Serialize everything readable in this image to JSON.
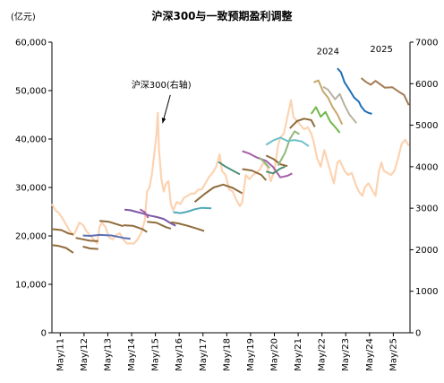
{
  "chart_data": {
    "type": "line",
    "title": "沪深300与一致预期盈利调整",
    "unit_label": "(亿元)",
    "ylim_left": [
      0,
      60000
    ],
    "ylim_right": [
      0,
      7000
    ],
    "yticks_left": [
      "0",
      "10,000",
      "20,000",
      "30,000",
      "40,000",
      "50,000",
      "60,000"
    ],
    "yticks_right": [
      "0",
      "1000",
      "2000",
      "3000",
      "4000",
      "5000",
      "6000",
      "7000"
    ],
    "xlim": [
      2011.0,
      2026.05
    ],
    "xticks": [
      "May/11",
      "May/12",
      "May/13",
      "May/14",
      "May/15",
      "May/16",
      "May/17",
      "May/18",
      "May/19",
      "May/20",
      "May/21",
      "May/22",
      "May/23",
      "May/24",
      "May/25"
    ],
    "annotations": [
      {
        "text": "沪深300(右轴)",
        "x": 2015.6,
        "y": 5900,
        "axis": "right",
        "arrow_to": [
          2015.65,
          5050
        ]
      },
      {
        "text": "2024",
        "x": 2022.6,
        "y": 57500,
        "axis": "left"
      },
      {
        "text": "2025",
        "x": 2024.85,
        "y": 58000,
        "axis": "left"
      }
    ],
    "index_series": {
      "name": "沪深300(右轴)",
      "axis": "right",
      "color": "#fcd3b2",
      "points": [
        [
          2011.0,
          3100
        ],
        [
          2011.15,
          2950
        ],
        [
          2011.3,
          2880
        ],
        [
          2011.45,
          2750
        ],
        [
          2011.6,
          2600
        ],
        [
          2011.75,
          2450
        ],
        [
          2011.9,
          2350
        ],
        [
          2012.0,
          2450
        ],
        [
          2012.15,
          2650
        ],
        [
          2012.3,
          2600
        ],
        [
          2012.45,
          2450
        ],
        [
          2012.6,
          2350
        ],
        [
          2012.75,
          2250
        ],
        [
          2012.9,
          2150
        ],
        [
          2013.0,
          2550
        ],
        [
          2013.1,
          2650
        ],
        [
          2013.25,
          2550
        ],
        [
          2013.4,
          2300
        ],
        [
          2013.55,
          2250
        ],
        [
          2013.7,
          2350
        ],
        [
          2013.85,
          2400
        ],
        [
          2014.0,
          2250
        ],
        [
          2014.15,
          2150
        ],
        [
          2014.3,
          2150
        ],
        [
          2014.45,
          2150
        ],
        [
          2014.6,
          2250
        ],
        [
          2014.75,
          2400
        ],
        [
          2014.9,
          2700
        ],
        [
          2015.0,
          3400
        ],
        [
          2015.1,
          3500
        ],
        [
          2015.2,
          3800
        ],
        [
          2015.3,
          4300
        ],
        [
          2015.4,
          4800
        ],
        [
          2015.45,
          5300
        ],
        [
          2015.5,
          4400
        ],
        [
          2015.6,
          3700
        ],
        [
          2015.7,
          3400
        ],
        [
          2015.8,
          3600
        ],
        [
          2015.9,
          3650
        ],
        [
          2016.0,
          3100
        ],
        [
          2016.1,
          2950
        ],
        [
          2016.25,
          3150
        ],
        [
          2016.4,
          3100
        ],
        [
          2016.55,
          3250
        ],
        [
          2016.7,
          3300
        ],
        [
          2016.85,
          3350
        ],
        [
          2017.0,
          3350
        ],
        [
          2017.15,
          3450
        ],
        [
          2017.3,
          3450
        ],
        [
          2017.45,
          3600
        ],
        [
          2017.6,
          3750
        ],
        [
          2017.75,
          3850
        ],
        [
          2017.9,
          4000
        ],
        [
          2018.05,
          4300
        ],
        [
          2018.15,
          3900
        ],
        [
          2018.3,
          3800
        ],
        [
          2018.45,
          3450
        ],
        [
          2018.6,
          3400
        ],
        [
          2018.75,
          3200
        ],
        [
          2018.9,
          3050
        ],
        [
          2019.0,
          3150
        ],
        [
          2019.15,
          3800
        ],
        [
          2019.3,
          3700
        ],
        [
          2019.45,
          3800
        ],
        [
          2019.6,
          3850
        ],
        [
          2019.75,
          3950
        ],
        [
          2019.9,
          4100
        ],
        [
          2020.05,
          4000
        ],
        [
          2020.2,
          3650
        ],
        [
          2020.35,
          3900
        ],
        [
          2020.5,
          4500
        ],
        [
          2020.6,
          4700
        ],
        [
          2020.75,
          4800
        ],
        [
          2020.9,
          5200
        ],
        [
          2021.05,
          5600
        ],
        [
          2021.15,
          5200
        ],
        [
          2021.3,
          5100
        ],
        [
          2021.45,
          5000
        ],
        [
          2021.6,
          4900
        ],
        [
          2021.75,
          4950
        ],
        [
          2021.9,
          4800
        ],
        [
          2022.0,
          4600
        ],
        [
          2022.15,
          4200
        ],
        [
          2022.3,
          4000
        ],
        [
          2022.45,
          4400
        ],
        [
          2022.6,
          4100
        ],
        [
          2022.75,
          3800
        ],
        [
          2022.85,
          3600
        ],
        [
          2023.0,
          4100
        ],
        [
          2023.1,
          4150
        ],
        [
          2023.3,
          3900
        ],
        [
          2023.45,
          3800
        ],
        [
          2023.6,
          3850
        ],
        [
          2023.75,
          3600
        ],
        [
          2023.9,
          3400
        ],
        [
          2024.05,
          3300
        ],
        [
          2024.15,
          3500
        ],
        [
          2024.3,
          3600
        ],
        [
          2024.45,
          3450
        ],
        [
          2024.6,
          3300
        ],
        [
          2024.75,
          3900
        ],
        [
          2024.85,
          4100
        ],
        [
          2024.95,
          3900
        ],
        [
          2025.1,
          3850
        ],
        [
          2025.25,
          3800
        ],
        [
          2025.4,
          3900
        ],
        [
          2025.55,
          4200
        ],
        [
          2025.7,
          4550
        ],
        [
          2025.85,
          4650
        ],
        [
          2026.0,
          4500
        ]
      ]
    },
    "series": [
      {
        "name": "",
        "axis": "left",
        "color": "#8f6c3c",
        "points": [
          [
            2011.0,
            21400
          ],
          [
            2011.4,
            21200
          ],
          [
            2011.7,
            20500
          ],
          [
            2011.9,
            20300
          ]
        ]
      },
      {
        "name": "",
        "axis": "left",
        "color": "#8f6c3c",
        "points": [
          [
            2011.0,
            18100
          ],
          [
            2011.3,
            17900
          ],
          [
            2011.6,
            17500
          ],
          [
            2011.9,
            16500
          ]
        ]
      },
      {
        "name": "",
        "axis": "left",
        "color": "#8f6c3c",
        "points": [
          [
            2012.0,
            19600
          ],
          [
            2012.3,
            19300
          ],
          [
            2012.6,
            19000
          ],
          [
            2012.95,
            18900
          ]
        ]
      },
      {
        "name": "",
        "axis": "left",
        "color": "#8f6c3c",
        "points": [
          [
            2012.3,
            17800
          ],
          [
            2012.6,
            17400
          ],
          [
            2012.95,
            17300
          ]
        ]
      },
      {
        "name": "",
        "axis": "left",
        "color": "#5b6fb5",
        "points": [
          [
            2012.3,
            20100
          ],
          [
            2012.6,
            20000
          ],
          [
            2013.0,
            20200
          ],
          [
            2013.5,
            20100
          ],
          [
            2014.0,
            19600
          ],
          [
            2014.3,
            19400
          ]
        ]
      },
      {
        "name": "",
        "axis": "left",
        "color": "#8f6c3c",
        "points": [
          [
            2013.0,
            23100
          ],
          [
            2013.4,
            22900
          ],
          [
            2013.8,
            22300
          ],
          [
            2014.0,
            22000
          ]
        ]
      },
      {
        "name": "",
        "axis": "left",
        "color": "#8f6c3c",
        "points": [
          [
            2014.0,
            22200
          ],
          [
            2014.4,
            22100
          ],
          [
            2014.8,
            21400
          ],
          [
            2015.0,
            20800
          ]
        ]
      },
      {
        "name": "",
        "axis": "left",
        "color": "#8f6c3c",
        "points": [
          [
            2015.0,
            22900
          ],
          [
            2015.4,
            22700
          ],
          [
            2015.8,
            21800
          ],
          [
            2016.0,
            21500
          ]
        ]
      },
      {
        "name": "",
        "axis": "left",
        "color": "#7d58a6",
        "points": [
          [
            2014.05,
            25400
          ],
          [
            2014.3,
            25300
          ],
          [
            2014.6,
            24900
          ],
          [
            2014.85,
            24600
          ],
          [
            2015.1,
            24200
          ],
          [
            2015.4,
            23900
          ],
          [
            2015.7,
            23500
          ],
          [
            2016.0,
            22600
          ],
          [
            2016.2,
            22100
          ]
        ]
      },
      {
        "name": "",
        "axis": "left",
        "color": "#a65fa8",
        "points": [
          [
            2014.7,
            25500
          ],
          [
            2014.9,
            24900
          ],
          [
            2015.05,
            23700
          ]
        ]
      },
      {
        "name": "",
        "axis": "left",
        "color": "#8f6c3c",
        "points": [
          [
            2016.0,
            22800
          ],
          [
            2016.3,
            22600
          ],
          [
            2016.7,
            22100
          ],
          [
            2017.1,
            21500
          ],
          [
            2017.4,
            21000
          ]
        ]
      },
      {
        "name": "",
        "axis": "left",
        "color": "#4fa9b7",
        "points": [
          [
            2016.1,
            24900
          ],
          [
            2016.4,
            24700
          ],
          [
            2016.7,
            25000
          ],
          [
            2017.0,
            25500
          ],
          [
            2017.3,
            25800
          ],
          [
            2017.7,
            25700
          ]
        ]
      },
      {
        "name": "",
        "axis": "left",
        "color": "#8f6c3c",
        "points": [
          [
            2017.0,
            27000
          ],
          [
            2017.4,
            28600
          ],
          [
            2017.8,
            30000
          ],
          [
            2018.2,
            30600
          ],
          [
            2018.6,
            29900
          ],
          [
            2019.0,
            28800
          ]
        ]
      },
      {
        "name": "",
        "axis": "left",
        "color": "#4f8f7a",
        "points": [
          [
            2018.0,
            35300
          ],
          [
            2018.3,
            34300
          ],
          [
            2018.6,
            33500
          ],
          [
            2018.9,
            32700
          ]
        ]
      },
      {
        "name": "",
        "axis": "left",
        "color": "#8f6c3c",
        "points": [
          [
            2019.0,
            33800
          ],
          [
            2019.4,
            33500
          ],
          [
            2019.8,
            32600
          ],
          [
            2020.0,
            31500
          ]
        ]
      },
      {
        "name": "",
        "axis": "left",
        "color": "#a65fa8",
        "points": [
          [
            2019.0,
            37500
          ],
          [
            2019.3,
            37000
          ],
          [
            2019.6,
            36200
          ],
          [
            2020.0,
            35500
          ],
          [
            2020.3,
            34200
          ],
          [
            2020.6,
            32100
          ],
          [
            2020.9,
            32400
          ],
          [
            2021.1,
            32900
          ]
        ]
      },
      {
        "name": "",
        "axis": "left",
        "color": "#8fb87a",
        "points": [
          [
            2019.7,
            36200
          ],
          [
            2019.9,
            35400
          ],
          [
            2020.15,
            34000
          ]
        ]
      },
      {
        "name": "",
        "axis": "left",
        "color": "#8f6c3c",
        "points": [
          [
            2020.0,
            36600
          ],
          [
            2020.3,
            35900
          ],
          [
            2020.6,
            34800
          ],
          [
            2020.9,
            34400
          ]
        ]
      },
      {
        "name": "",
        "axis": "left",
        "color": "#4f8f7a",
        "points": [
          [
            2020.0,
            33300
          ],
          [
            2020.3,
            32900
          ],
          [
            2020.6,
            33900
          ],
          [
            2020.8,
            34300
          ]
        ]
      },
      {
        "name": "",
        "axis": "left",
        "color": "#8fb87a",
        "points": [
          [
            2020.5,
            34500
          ],
          [
            2020.8,
            37200
          ],
          [
            2021.0,
            40000
          ],
          [
            2021.2,
            41600
          ],
          [
            2021.4,
            41000
          ]
        ]
      },
      {
        "name": "",
        "axis": "left",
        "color": "#6fc0c8",
        "points": [
          [
            2020.0,
            38800
          ],
          [
            2020.3,
            39700
          ],
          [
            2020.6,
            40300
          ],
          [
            2020.9,
            39600
          ],
          [
            2021.2,
            39800
          ],
          [
            2021.5,
            39500
          ],
          [
            2021.8,
            38500
          ]
        ]
      },
      {
        "name": "",
        "axis": "left",
        "color": "#8f6c3c",
        "points": [
          [
            2021.0,
            42200
          ],
          [
            2021.3,
            43700
          ],
          [
            2021.6,
            44200
          ],
          [
            2021.9,
            43900
          ],
          [
            2022.05,
            42500
          ]
        ]
      },
      {
        "name": "",
        "axis": "left",
        "color": "#6fb84a",
        "points": [
          [
            2021.9,
            45200
          ],
          [
            2022.1,
            46600
          ],
          [
            2022.3,
            44600
          ],
          [
            2022.5,
            45600
          ],
          [
            2022.7,
            43600
          ],
          [
            2022.9,
            42500
          ],
          [
            2023.1,
            41300
          ]
        ]
      },
      {
        "name": "",
        "axis": "left",
        "color": "#c7a76b",
        "points": [
          [
            2022.0,
            51700
          ],
          [
            2022.2,
            52100
          ],
          [
            2022.4,
            49800
          ],
          [
            2022.6,
            48600
          ],
          [
            2022.8,
            46600
          ],
          [
            2023.0,
            45100
          ],
          [
            2023.2,
            43000
          ]
        ]
      },
      {
        "name": "",
        "axis": "left",
        "color": "#b8b2a2",
        "points": [
          [
            2022.4,
            50800
          ],
          [
            2022.6,
            50200
          ],
          [
            2022.9,
            48200
          ],
          [
            2023.1,
            49300
          ],
          [
            2023.3,
            47000
          ],
          [
            2023.5,
            45100
          ],
          [
            2023.8,
            43300
          ]
        ]
      },
      {
        "name": "2024",
        "axis": "left",
        "color": "#1f6fb5",
        "points": [
          [
            2023.0,
            54600
          ],
          [
            2023.15,
            53800
          ],
          [
            2023.3,
            51700
          ],
          [
            2023.5,
            50200
          ],
          [
            2023.7,
            48600
          ],
          [
            2023.9,
            47700
          ],
          [
            2024.0,
            46700
          ],
          [
            2024.15,
            45800
          ],
          [
            2024.3,
            45400
          ],
          [
            2024.45,
            45200
          ]
        ]
      },
      {
        "name": "2025",
        "axis": "left",
        "color": "#a47b55",
        "points": [
          [
            2024.0,
            52600
          ],
          [
            2024.2,
            51800
          ],
          [
            2024.4,
            51200
          ],
          [
            2024.6,
            52000
          ],
          [
            2024.8,
            51300
          ],
          [
            2025.0,
            50600
          ],
          [
            2025.3,
            50700
          ],
          [
            2025.6,
            49700
          ],
          [
            2025.8,
            49100
          ],
          [
            2026.0,
            47000
          ]
        ]
      }
    ]
  }
}
